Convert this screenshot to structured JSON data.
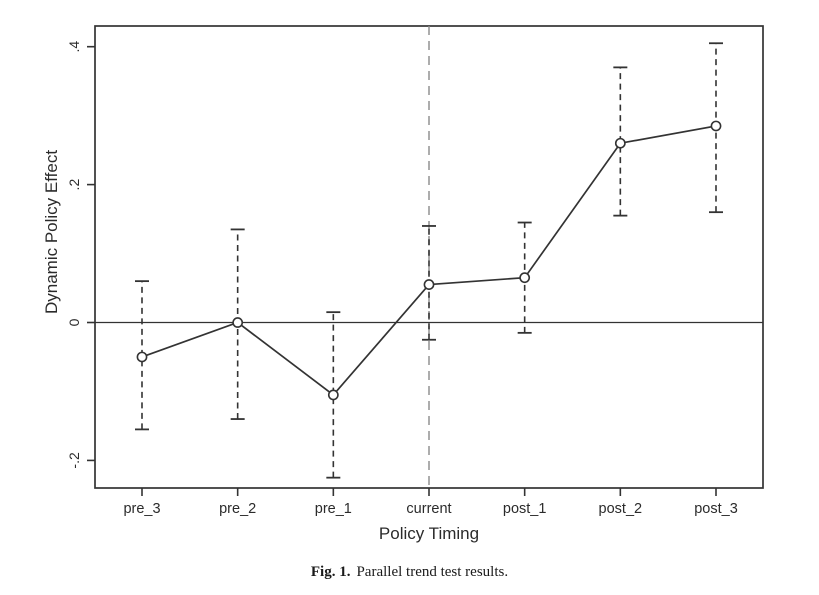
{
  "page": {
    "background": "#ffffff"
  },
  "figure": {
    "caption_label": "Fig. 1.",
    "caption_text": "Parallel trend test results."
  },
  "chart_data": {
    "type": "line",
    "title": "",
    "xlabel": "Policy Timing",
    "ylabel": "Dynamic Policy Effect",
    "categories": [
      "pre_3",
      "pre_2",
      "pre_1",
      "current",
      "post_1",
      "post_2",
      "post_3"
    ],
    "series": [
      {
        "name": "Dynamic Policy Effect",
        "values": [
          -0.05,
          0.0,
          -0.105,
          0.055,
          0.065,
          0.26,
          0.285
        ],
        "ci_low": [
          -0.155,
          -0.14,
          -0.225,
          -0.025,
          -0.015,
          0.155,
          0.16
        ],
        "ci_high": [
          0.06,
          0.135,
          0.015,
          0.14,
          0.145,
          0.37,
          0.405
        ]
      }
    ],
    "yticks": [
      -0.2,
      0.0,
      0.2,
      0.4
    ],
    "ytick_labels": [
      "-.2",
      "0",
      ".2",
      ".4"
    ],
    "ylim": [
      -0.24,
      0.43
    ],
    "grid": false,
    "legend": "none",
    "marker": "open-circle",
    "error_bars": "dashed-with-caps",
    "reference_lines": {
      "horizontal_at": 0.0,
      "vertical_at_category": "current"
    },
    "colors": {
      "axis": "#333333",
      "line": "#333333",
      "marker_fill": "#ffffff",
      "error_bar": "#333333",
      "reference_line": "#8a8a8a",
      "text": "#2b2b2b",
      "background": "#ffffff"
    }
  }
}
